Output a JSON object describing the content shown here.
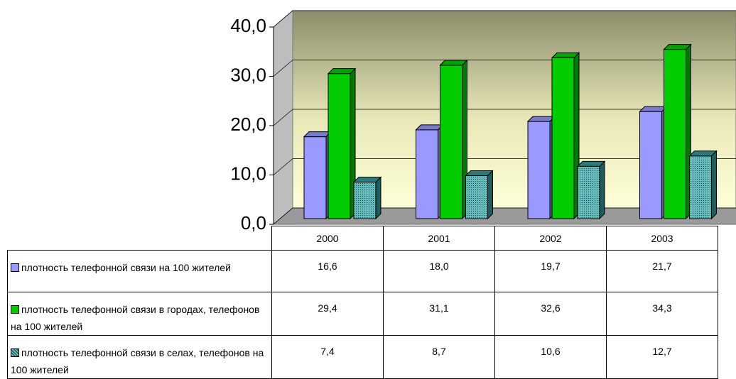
{
  "chart_data": {
    "type": "bar",
    "categories": [
      "2000",
      "2001",
      "2002",
      "2003"
    ],
    "series": [
      {
        "name": "плотность телефонной связи на 100 жителей",
        "color": "#9999ff",
        "values": [
          16.6,
          18.0,
          19.7,
          21.7
        ],
        "value_labels": [
          "16,6",
          "18,0",
          "19,7",
          "21,7"
        ]
      },
      {
        "name": "плотность телефонной связи в городах, телефонов на 100 жителей",
        "color": "#00cc00",
        "values": [
          29.4,
          31.1,
          32.6,
          34.3
        ],
        "value_labels": [
          "29,4",
          "31,1",
          "32,6",
          "34,3"
        ]
      },
      {
        "name": "плотность телефонной связи в селах, телефонов на 100 жителей",
        "color": "#339999",
        "values": [
          7.4,
          8.7,
          10.6,
          12.7
        ],
        "value_labels": [
          "7,4",
          "8,7",
          "10,6",
          "12,7"
        ]
      }
    ],
    "ylim": [
      0,
      40
    ],
    "yticks": [
      {
        "value": 0,
        "label": "0,0"
      },
      {
        "value": 10,
        "label": "10,0"
      },
      {
        "value": 20,
        "label": "20,0"
      },
      {
        "value": 30,
        "label": "30,0"
      },
      {
        "value": 40,
        "label": "40,0"
      }
    ],
    "grid": true
  }
}
